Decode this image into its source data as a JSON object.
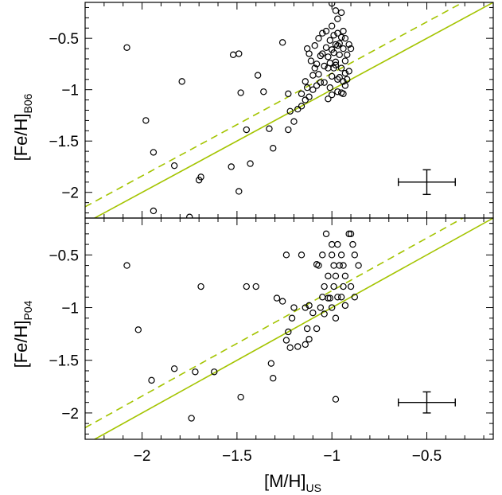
{
  "chart_data": [
    {
      "type": "scatter",
      "panel": "top",
      "xlabel": "",
      "ylabel": "[Fe/H]",
      "ylabel_sub": "B06",
      "xlim": [
        -2.3,
        -0.15
      ],
      "ylim": [
        -2.25,
        -0.15
      ],
      "x_ticks": [
        -2,
        -1.5,
        -1,
        -0.5
      ],
      "y_ticks": [
        -0.5,
        -1,
        -1.5,
        -2
      ],
      "y_tick_labels": [
        "−0.5",
        "−1",
        "−1.5",
        "−2"
      ],
      "lines": [
        {
          "style": "solid",
          "color": "#a4c400",
          "slope": 1.0,
          "intercept": 0.0
        },
        {
          "style": "dashed",
          "color": "#a4c400",
          "slope": 1.0,
          "intercept": 0.16
        }
      ],
      "error_bar": {
        "x": -0.5,
        "y": -1.9,
        "xerr": 0.15,
        "yerr": 0.12
      },
      "points": [
        [
          -2.08,
          -0.59
        ],
        [
          -1.98,
          -1.3
        ],
        [
          -1.94,
          -1.61
        ],
        [
          -1.79,
          -0.92
        ],
        [
          -1.83,
          -1.74
        ],
        [
          -1.75,
          -2.24
        ],
        [
          -1.69,
          -1.85
        ],
        [
          -1.7,
          -1.88
        ],
        [
          -1.94,
          -2.18
        ],
        [
          -1.52,
          -0.66
        ],
        [
          -1.49,
          -0.65
        ],
        [
          -1.48,
          -1.03
        ],
        [
          -1.39,
          -0.86
        ],
        [
          -1.36,
          -1.02
        ],
        [
          -1.45,
          -1.39
        ],
        [
          -1.43,
          -1.72
        ],
        [
          -1.53,
          -1.75
        ],
        [
          -1.49,
          -1.99
        ],
        [
          -1.33,
          -1.38
        ],
        [
          -1.31,
          -1.57
        ],
        [
          -1.26,
          -0.54
        ],
        [
          -1.23,
          -1.04
        ],
        [
          -1.22,
          -1.21
        ],
        [
          -1.18,
          -1.19
        ],
        [
          -1.16,
          -1.16
        ],
        [
          -1.2,
          -1.31
        ],
        [
          -1.23,
          -1.39
        ],
        [
          -1.16,
          -1.04
        ],
        [
          -1.13,
          -0.98
        ],
        [
          -1.14,
          -0.92
        ],
        [
          -1.1,
          -0.86
        ],
        [
          -1.08,
          -0.75
        ],
        [
          -1.05,
          -0.65
        ],
        [
          -1.02,
          -0.68
        ],
        [
          -1.0,
          -0.61
        ],
        [
          -0.98,
          -0.56
        ],
        [
          -1.01,
          -0.52
        ],
        [
          -0.99,
          -0.47
        ],
        [
          -1.03,
          -0.43
        ],
        [
          -1.0,
          -0.38
        ],
        [
          -0.97,
          -0.31
        ],
        [
          -0.98,
          -0.23
        ],
        [
          -1.0,
          -0.16
        ],
        [
          -0.95,
          -0.25
        ],
        [
          -0.94,
          -0.43
        ],
        [
          -0.95,
          -0.49
        ],
        [
          -0.96,
          -0.55
        ],
        [
          -0.94,
          -0.6
        ],
        [
          -0.96,
          -0.66
        ],
        [
          -0.93,
          -0.72
        ],
        [
          -0.95,
          -0.79
        ],
        [
          -0.93,
          -0.84
        ],
        [
          -0.96,
          -0.88
        ],
        [
          -0.94,
          -0.92
        ],
        [
          -0.93,
          -0.96
        ],
        [
          -0.95,
          -1.03
        ],
        [
          -0.94,
          -1.04
        ],
        [
          -0.97,
          -1.02
        ],
        [
          -1.0,
          -1.05
        ],
        [
          -1.02,
          -1.09
        ],
        [
          -1.01,
          -0.98
        ],
        [
          -1.04,
          -0.93
        ],
        [
          -1.06,
          -0.93
        ],
        [
          -1.08,
          -0.96
        ],
        [
          -1.1,
          -1.0
        ],
        [
          -1.12,
          -1.07
        ],
        [
          -1.14,
          -1.1
        ],
        [
          -1.07,
          -0.85
        ],
        [
          -1.09,
          -0.79
        ],
        [
          -1.11,
          -0.72
        ],
        [
          -1.12,
          -0.65
        ],
        [
          -1.13,
          -0.6
        ],
        [
          -1.09,
          -0.57
        ],
        [
          -1.07,
          -0.5
        ],
        [
          -1.05,
          -0.45
        ],
        [
          -1.02,
          -0.79
        ],
        [
          -1.01,
          -0.74
        ],
        [
          -0.99,
          -0.79
        ],
        [
          -0.98,
          -0.73
        ],
        [
          -0.97,
          -0.57
        ],
        [
          -0.99,
          -0.64
        ],
        [
          -1.03,
          -0.59
        ],
        [
          -1.06,
          -0.67
        ],
        [
          -1.0,
          -0.87
        ],
        [
          -0.97,
          -0.9
        ],
        [
          -0.91,
          -0.56
        ],
        [
          -0.92,
          -0.66
        ],
        [
          -0.91,
          -0.82
        ],
        [
          -0.92,
          -0.9
        ],
        [
          -0.9,
          -0.6
        ],
        [
          -0.93,
          -0.5
        ],
        [
          -1.04,
          -0.77
        ],
        [
          -0.98,
          -0.76
        ],
        [
          -0.97,
          -0.45
        ]
      ]
    },
    {
      "type": "scatter",
      "panel": "bottom",
      "xlabel": "[M/H]",
      "xlabel_sub": "US",
      "ylabel": "[Fe/H]",
      "ylabel_sub": "P04",
      "xlim": [
        -2.3,
        -0.15
      ],
      "ylim": [
        -2.25,
        -0.15
      ],
      "x_ticks": [
        -2,
        -1.5,
        -1,
        -0.5
      ],
      "x_tick_labels": [
        "−2",
        "−1.5",
        "−1",
        "−0.5"
      ],
      "y_ticks": [
        -0.5,
        -1,
        -1.5,
        -2
      ],
      "y_tick_labels": [
        "−0.5",
        "−1",
        "−1.5",
        "−2"
      ],
      "lines": [
        {
          "style": "solid",
          "color": "#a4c400",
          "slope": 1.0,
          "intercept": 0.0
        },
        {
          "style": "dashed",
          "color": "#a4c400",
          "slope": 1.0,
          "intercept": 0.16
        }
      ],
      "error_bar": {
        "x": -0.5,
        "y": -1.9,
        "xerr": 0.15,
        "yerr": 0.1
      },
      "points": [
        [
          -2.08,
          -0.6
        ],
        [
          -2.02,
          -1.21
        ],
        [
          -1.95,
          -1.69
        ],
        [
          -1.83,
          -1.58
        ],
        [
          -1.74,
          -2.05
        ],
        [
          -1.72,
          -1.61
        ],
        [
          -1.69,
          -0.8
        ],
        [
          -1.62,
          -1.61
        ],
        [
          -1.48,
          -1.85
        ],
        [
          -1.45,
          -0.8
        ],
        [
          -1.4,
          -0.8
        ],
        [
          -1.32,
          -1.53
        ],
        [
          -1.31,
          -1.67
        ],
        [
          -1.29,
          -0.91
        ],
        [
          -1.26,
          -0.94
        ],
        [
          -1.24,
          -1.31
        ],
        [
          -1.22,
          -1.38
        ],
        [
          -1.23,
          -1.23
        ],
        [
          -1.21,
          -1.1
        ],
        [
          -1.2,
          -1.0
        ],
        [
          -1.24,
          -0.5
        ],
        [
          -1.16,
          -0.5
        ],
        [
          -1.12,
          -0.98
        ],
        [
          -1.14,
          -1.0
        ],
        [
          -1.1,
          -1.05
        ],
        [
          -1.13,
          -1.2
        ],
        [
          -1.12,
          -1.3
        ],
        [
          -1.08,
          -0.59
        ],
        [
          -1.07,
          -0.6
        ],
        [
          -1.05,
          -0.5
        ],
        [
          -1.04,
          -0.8
        ],
        [
          -1.02,
          -0.7
        ],
        [
          -1.02,
          -0.91
        ],
        [
          -1.04,
          -1.06
        ],
        [
          -1.06,
          -1.0
        ],
        [
          -1.0,
          -0.4
        ],
        [
          -1.0,
          -0.5
        ],
        [
          -0.99,
          -0.6
        ],
        [
          -0.98,
          -0.7
        ],
        [
          -0.99,
          -0.8
        ],
        [
          -1.03,
          -0.3
        ],
        [
          -0.97,
          -0.4
        ],
        [
          -0.95,
          -0.5
        ],
        [
          -0.96,
          -0.6
        ],
        [
          -0.94,
          -0.6
        ],
        [
          -0.93,
          -0.7
        ],
        [
          -0.94,
          -0.8
        ],
        [
          -0.97,
          -0.9
        ],
        [
          -0.95,
          -0.9
        ],
        [
          -0.93,
          -0.98
        ],
        [
          -0.9,
          -0.3
        ],
        [
          -0.91,
          -0.3
        ],
        [
          -0.89,
          -0.4
        ],
        [
          -0.88,
          -0.5
        ],
        [
          -0.86,
          -0.6
        ],
        [
          -0.9,
          -0.8
        ],
        [
          -0.88,
          -0.9
        ],
        [
          -1.0,
          -1.0
        ],
        [
          -0.98,
          -1.1
        ],
        [
          -1.08,
          -1.2
        ],
        [
          -1.14,
          -1.35
        ],
        [
          -1.18,
          -1.37
        ],
        [
          -0.98,
          -1.87
        ],
        [
          -1.01,
          -0.91
        ],
        [
          -1.05,
          -0.9
        ]
      ]
    }
  ]
}
